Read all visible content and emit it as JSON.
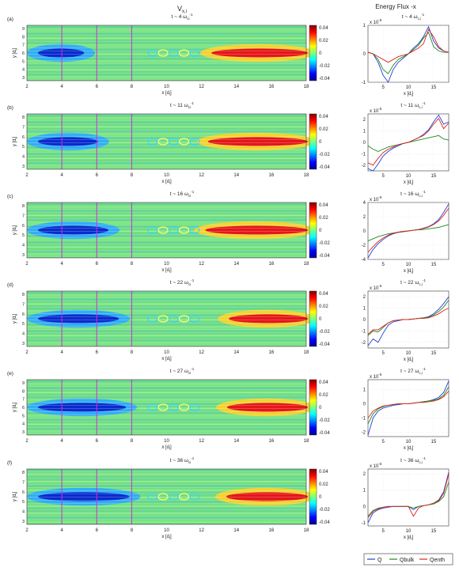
{
  "headers": {
    "left_title": "V",
    "left_title_sub": "x,i",
    "right_title": "Energy Flux -x"
  },
  "colorbar": {
    "ticks": [
      "0.04",
      "0.02",
      "0",
      "-0.02",
      "-0.04"
    ],
    "range": [
      -0.04,
      0.04
    ],
    "colormap": "jet"
  },
  "axes_text": {
    "ylabel_map": "y [d",
    "ylabel_map_sub": "i",
    "xlabel": "x [d",
    "xlabel_sub": "i"
  },
  "legend": [
    {
      "name": "Q",
      "color": "#1f3fd6"
    },
    {
      "name": "Qbulk",
      "color": "#1a8a1a"
    },
    {
      "name": "Qenth",
      "color": "#e0201a"
    }
  ],
  "chart_data": [
    {
      "panel": "(a)",
      "time": "t ~ 4",
      "type": "heatmap",
      "x_ticks": [
        "2",
        "4",
        "6",
        "8",
        "10",
        "12",
        "14",
        "16",
        "18"
      ],
      "y_ticks": [
        "9",
        "8",
        "7",
        "6",
        "5",
        "4",
        "3"
      ],
      "flux": {
        "type": "line",
        "exponent": "x 10",
        "exp_power": "-5",
        "title_time": "t ~ 4",
        "y_ticks": [
          "1",
          "0",
          "-1"
        ],
        "ylim": [
          -1,
          1
        ],
        "x_ticks": [
          "5",
          "10",
          "15"
        ],
        "xlim": [
          2,
          18
        ],
        "series": [
          {
            "name": "Q",
            "x": [
              2,
              3,
              4,
              5,
              6,
              7,
              8,
              9,
              10,
              11,
              12,
              13,
              14,
              15,
              16,
              17,
              18
            ],
            "y": [
              0.05,
              0.0,
              -0.3,
              -0.75,
              -1.0,
              -0.55,
              -0.3,
              -0.15,
              0.0,
              0.2,
              0.35,
              0.6,
              0.95,
              0.45,
              0.2,
              0.1,
              0.05
            ]
          },
          {
            "name": "Qbulk",
            "x": [
              2,
              3,
              4,
              5,
              6,
              7,
              8,
              9,
              10,
              11,
              12,
              13,
              14,
              15,
              16,
              17,
              18
            ],
            "y": [
              0.05,
              0.0,
              -0.2,
              -0.55,
              -0.7,
              -0.4,
              -0.2,
              -0.1,
              0.0,
              0.15,
              0.3,
              0.55,
              0.75,
              0.25,
              0.1,
              0.05,
              0.05
            ]
          },
          {
            "name": "Qenth",
            "x": [
              2,
              3,
              4,
              5,
              6,
              7,
              8,
              9,
              10,
              11,
              12,
              13,
              14,
              15,
              16,
              17,
              18
            ],
            "y": [
              0.05,
              0.0,
              -0.1,
              -0.2,
              -0.3,
              -0.2,
              -0.1,
              -0.05,
              0.0,
              0.1,
              0.2,
              0.35,
              0.85,
              0.6,
              0.25,
              0.1,
              0.05
            ]
          }
        ]
      }
    },
    {
      "panel": "(b)",
      "time": "t ~ 11",
      "type": "heatmap",
      "x_ticks": [
        "2",
        "4",
        "6",
        "8",
        "10",
        "12",
        "14",
        "16",
        "18"
      ],
      "y_ticks": [
        "8",
        "7",
        "6",
        "5",
        "4",
        "3"
      ],
      "flux": {
        "type": "line",
        "exponent": "x 10",
        "exp_power": "-5",
        "title_time": "t ~ 11",
        "y_ticks": [
          "2",
          "1",
          "0",
          "-1",
          "-2"
        ],
        "ylim": [
          -2.5,
          2.5
        ],
        "x_ticks": [
          "5",
          "10",
          "15"
        ],
        "xlim": [
          2,
          18
        ],
        "series": [
          {
            "name": "Q",
            "x": [
              2,
              3,
              4,
              5,
              6,
              7,
              8,
              9,
              10,
              11,
              12,
              13,
              14,
              15,
              16,
              17,
              18
            ],
            "y": [
              -2.3,
              -2.6,
              -1.9,
              -1.2,
              -0.8,
              -0.5,
              -0.3,
              -0.1,
              0.0,
              0.2,
              0.4,
              0.7,
              1.1,
              1.8,
              2.4,
              1.6,
              1.8
            ]
          },
          {
            "name": "Qbulk",
            "x": [
              2,
              3,
              4,
              5,
              6,
              7,
              8,
              9,
              10,
              11,
              12,
              13,
              14,
              15,
              16,
              17,
              18
            ],
            "y": [
              -0.3,
              -0.6,
              -0.8,
              -0.6,
              -0.4,
              -0.3,
              -0.2,
              -0.1,
              0.0,
              0.1,
              0.2,
              0.3,
              0.4,
              0.5,
              0.6,
              0.3,
              0.2
            ]
          },
          {
            "name": "Qenth",
            "x": [
              2,
              3,
              4,
              5,
              6,
              7,
              8,
              9,
              10,
              11,
              12,
              13,
              14,
              15,
              16,
              17,
              18
            ],
            "y": [
              -1.8,
              -2.0,
              -1.4,
              -0.9,
              -0.6,
              -0.4,
              -0.2,
              -0.1,
              0.0,
              0.2,
              0.4,
              0.6,
              1.0,
              1.6,
              2.1,
              1.2,
              1.7
            ]
          }
        ]
      }
    },
    {
      "panel": "(c)",
      "time": "t ~ 16",
      "type": "heatmap",
      "x_ticks": [
        "2",
        "4",
        "6",
        "8",
        "10",
        "12",
        "14",
        "16",
        "18"
      ],
      "y_ticks": [
        "8",
        "7",
        "6",
        "5",
        "4",
        "3"
      ],
      "flux": {
        "type": "line",
        "exponent": "x 10",
        "exp_power": "-5",
        "title_time": "t ~ 16",
        "y_ticks": [
          "4",
          "2",
          "0",
          "-2",
          "-4"
        ],
        "ylim": [
          -4,
          4
        ],
        "x_ticks": [
          "5",
          "10",
          "15"
        ],
        "xlim": [
          2,
          18
        ],
        "series": [
          {
            "name": "Q",
            "x": [
              2,
              3,
              4,
              5,
              6,
              7,
              8,
              9,
              10,
              11,
              12,
              13,
              14,
              15,
              16,
              17,
              18
            ],
            "y": [
              -3.8,
              -2.6,
              -1.8,
              -1.2,
              -0.7,
              -0.4,
              -0.2,
              -0.1,
              0.0,
              0.1,
              0.2,
              0.4,
              0.6,
              1.0,
              1.6,
              2.6,
              3.8
            ]
          },
          {
            "name": "Qbulk",
            "x": [
              2,
              3,
              4,
              5,
              6,
              7,
              8,
              9,
              10,
              11,
              12,
              13,
              14,
              15,
              16,
              17,
              18
            ],
            "y": [
              -1.4,
              -1.1,
              -0.8,
              -0.6,
              -0.4,
              -0.3,
              -0.2,
              -0.1,
              0.0,
              0.1,
              0.15,
              0.2,
              0.3,
              0.4,
              0.5,
              0.7,
              0.9
            ]
          },
          {
            "name": "Qenth",
            "x": [
              2,
              3,
              4,
              5,
              6,
              7,
              8,
              9,
              10,
              11,
              12,
              13,
              14,
              15,
              16,
              17,
              18
            ],
            "y": [
              -3.0,
              -2.2,
              -1.5,
              -1.0,
              -0.6,
              -0.3,
              -0.15,
              -0.05,
              0.0,
              0.1,
              0.2,
              0.35,
              0.55,
              0.9,
              1.4,
              2.2,
              3.2
            ]
          }
        ]
      }
    },
    {
      "panel": "(d)",
      "time": "t ~ 22",
      "type": "heatmap",
      "x_ticks": [
        "2",
        "4",
        "6",
        "8",
        "10",
        "12",
        "14",
        "16",
        "18"
      ],
      "y_ticks": [
        "8",
        "7",
        "6",
        "5",
        "4",
        "3"
      ],
      "flux": {
        "type": "line",
        "exponent": "x 10",
        "exp_power": "-5",
        "title_time": "t ~ 22",
        "y_ticks": [
          "2",
          "1",
          "0",
          "-1",
          "-2"
        ],
        "ylim": [
          -2.5,
          2.5
        ],
        "x_ticks": [
          "5",
          "10",
          "15"
        ],
        "xlim": [
          2,
          18
        ],
        "series": [
          {
            "name": "Q",
            "x": [
              2,
              3,
              4,
              5,
              6,
              7,
              8,
              9,
              10,
              11,
              12,
              13,
              14,
              15,
              16,
              17,
              18
            ],
            "y": [
              -2.3,
              -1.7,
              -2.0,
              -1.2,
              -0.5,
              -0.2,
              -0.1,
              0.0,
              0.0,
              0.05,
              0.1,
              0.15,
              0.25,
              0.5,
              0.9,
              1.4,
              2.0
            ]
          },
          {
            "name": "Qbulk",
            "x": [
              2,
              3,
              4,
              5,
              6,
              7,
              8,
              9,
              10,
              11,
              12,
              13,
              14,
              15,
              16,
              17,
              18
            ],
            "y": [
              -1.4,
              -1.0,
              -1.1,
              -0.7,
              -0.3,
              -0.1,
              -0.05,
              0.0,
              0.0,
              0.05,
              0.1,
              0.15,
              0.2,
              0.4,
              0.7,
              1.1,
              1.7
            ]
          },
          {
            "name": "Qenth",
            "x": [
              2,
              3,
              4,
              5,
              6,
              7,
              8,
              9,
              10,
              11,
              12,
              13,
              14,
              15,
              16,
              17,
              18
            ],
            "y": [
              -1.3,
              -0.9,
              -0.9,
              -0.6,
              -0.3,
              -0.1,
              -0.05,
              0.0,
              0.0,
              0.05,
              0.1,
              0.1,
              0.15,
              0.3,
              0.5,
              0.8,
              1.0
            ]
          }
        ]
      }
    },
    {
      "panel": "(e)",
      "time": "t ~ 27",
      "type": "heatmap",
      "x_ticks": [
        "2",
        "4",
        "6",
        "8",
        "10",
        "12",
        "14",
        "16",
        "18"
      ],
      "y_ticks": [
        "9",
        "8",
        "7",
        "6",
        "5",
        "4",
        "3"
      ],
      "flux": {
        "type": "line",
        "exponent": "x 10",
        "exp_power": "-5",
        "title_time": "t ~ 27",
        "y_ticks": [
          "1",
          "0",
          "-1",
          "-2"
        ],
        "ylim": [
          -2.3,
          1.7
        ],
        "x_ticks": [
          "5",
          "10",
          "15"
        ],
        "xlim": [
          2,
          18
        ],
        "series": [
          {
            "name": "Q",
            "x": [
              2,
              3,
              4,
              5,
              6,
              7,
              8,
              9,
              10,
              11,
              12,
              13,
              14,
              15,
              16,
              17,
              18
            ],
            "y": [
              -2.2,
              -1.0,
              -0.5,
              -0.3,
              -0.2,
              -0.1,
              -0.05,
              0.0,
              0.0,
              0.05,
              0.1,
              0.15,
              0.2,
              0.3,
              0.45,
              0.8,
              1.6
            ]
          },
          {
            "name": "Qbulk",
            "x": [
              2,
              3,
              4,
              5,
              6,
              7,
              8,
              9,
              10,
              11,
              12,
              13,
              14,
              15,
              16,
              17,
              18
            ],
            "y": [
              -1.4,
              -0.7,
              -0.35,
              -0.2,
              -0.1,
              -0.05,
              0.0,
              0.0,
              0.0,
              0.05,
              0.1,
              0.15,
              0.2,
              0.25,
              0.35,
              0.6,
              1.2
            ]
          },
          {
            "name": "Qenth",
            "x": [
              2,
              3,
              4,
              5,
              6,
              7,
              8,
              9,
              10,
              11,
              12,
              13,
              14,
              15,
              16,
              17,
              18
            ],
            "y": [
              -1.0,
              -0.5,
              -0.3,
              -0.15,
              -0.1,
              -0.05,
              0.0,
              0.0,
              0.0,
              0.05,
              0.1,
              0.1,
              0.15,
              0.2,
              0.3,
              0.5,
              0.9
            ]
          }
        ]
      }
    },
    {
      "panel": "(f)",
      "time": "t ~ 36",
      "type": "heatmap",
      "x_ticks": [
        "2",
        "4",
        "6",
        "8",
        "10",
        "12",
        "14",
        "16",
        "18"
      ],
      "y_ticks": [
        "8",
        "7",
        "6",
        "5",
        "4",
        "3"
      ],
      "flux": {
        "type": "line",
        "exponent": "x 10",
        "exp_power": "-5",
        "title_time": "t ~ 36",
        "y_ticks": [
          "2",
          "1",
          "0",
          "-1"
        ],
        "ylim": [
          -1.2,
          2.3
        ],
        "x_ticks": [
          "5",
          "10",
          "15"
        ],
        "xlim": [
          2,
          18
        ],
        "series": [
          {
            "name": "Q",
            "x": [
              2,
              3,
              4,
              5,
              6,
              7,
              8,
              9,
              10,
              11,
              12,
              13,
              14,
              15,
              16,
              17,
              18
            ],
            "y": [
              -1.0,
              -0.4,
              -0.2,
              -0.1,
              -0.05,
              0.0,
              0.0,
              0.0,
              0.0,
              -0.2,
              0.0,
              0.05,
              0.1,
              0.2,
              0.4,
              0.9,
              2.1
            ]
          },
          {
            "name": "Qbulk",
            "x": [
              2,
              3,
              4,
              5,
              6,
              7,
              8,
              9,
              10,
              11,
              12,
              13,
              14,
              15,
              16,
              17,
              18
            ],
            "y": [
              -0.6,
              -0.25,
              -0.1,
              -0.05,
              0.0,
              0.0,
              0.0,
              0.0,
              0.0,
              -0.1,
              0.0,
              0.05,
              0.1,
              0.15,
              0.3,
              0.6,
              1.5
            ]
          },
          {
            "name": "Qenth",
            "x": [
              2,
              3,
              4,
              5,
              6,
              7,
              8,
              9,
              10,
              11,
              12,
              13,
              14,
              15,
              16,
              17,
              18
            ],
            "y": [
              -0.7,
              -0.3,
              -0.15,
              -0.05,
              0.0,
              0.0,
              0.0,
              0.0,
              0.0,
              -0.6,
              -0.1,
              0.05,
              0.1,
              0.2,
              0.35,
              0.8,
              2.0
            ]
          }
        ]
      }
    }
  ]
}
